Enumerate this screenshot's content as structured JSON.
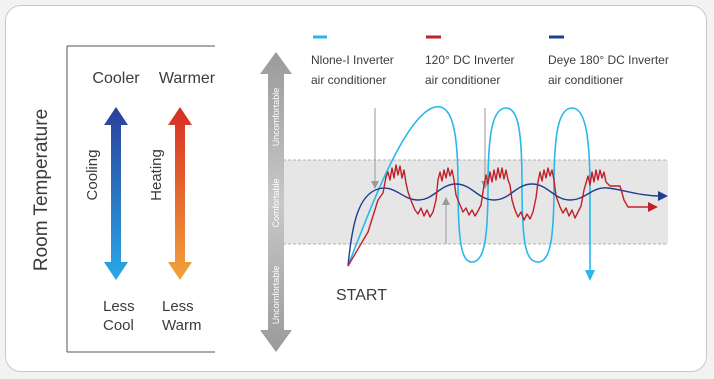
{
  "left_panel": {
    "axis_title": "Room Temperature",
    "cooler": "Cooler",
    "warmer": "Warmer",
    "cooling": "Cooling",
    "heating": "Heating",
    "less_cool_1": "Less",
    "less_cool_2": "Cool",
    "less_warm_1": "Less",
    "less_warm_2": "Warm"
  },
  "comfort_axis": {
    "top": "Uncomfortable",
    "middle": "Comfortable",
    "bottom": "Uncomfortable"
  },
  "legend": [
    {
      "line1": "Nlone-I Inverter",
      "line2": "air conditioner",
      "color": "#2ab7ea"
    },
    {
      "line1": "120°  DC Inverter",
      "line2": "air conditioner",
      "color": "#c0202a"
    },
    {
      "line1": "Deye 180°  DC Inverter",
      "line2": "air conditioner",
      "color": "#1e3f8f"
    }
  ],
  "start_label": "START",
  "colors": {
    "cooling_top": "#2a3f99",
    "cooling_bottom": "#2aa8e8",
    "heating_top": "#d62d25",
    "heating_bottom": "#f3a33a",
    "comfort_band": "#e6e6e6",
    "gray_arrow": "#b3b3b3"
  }
}
